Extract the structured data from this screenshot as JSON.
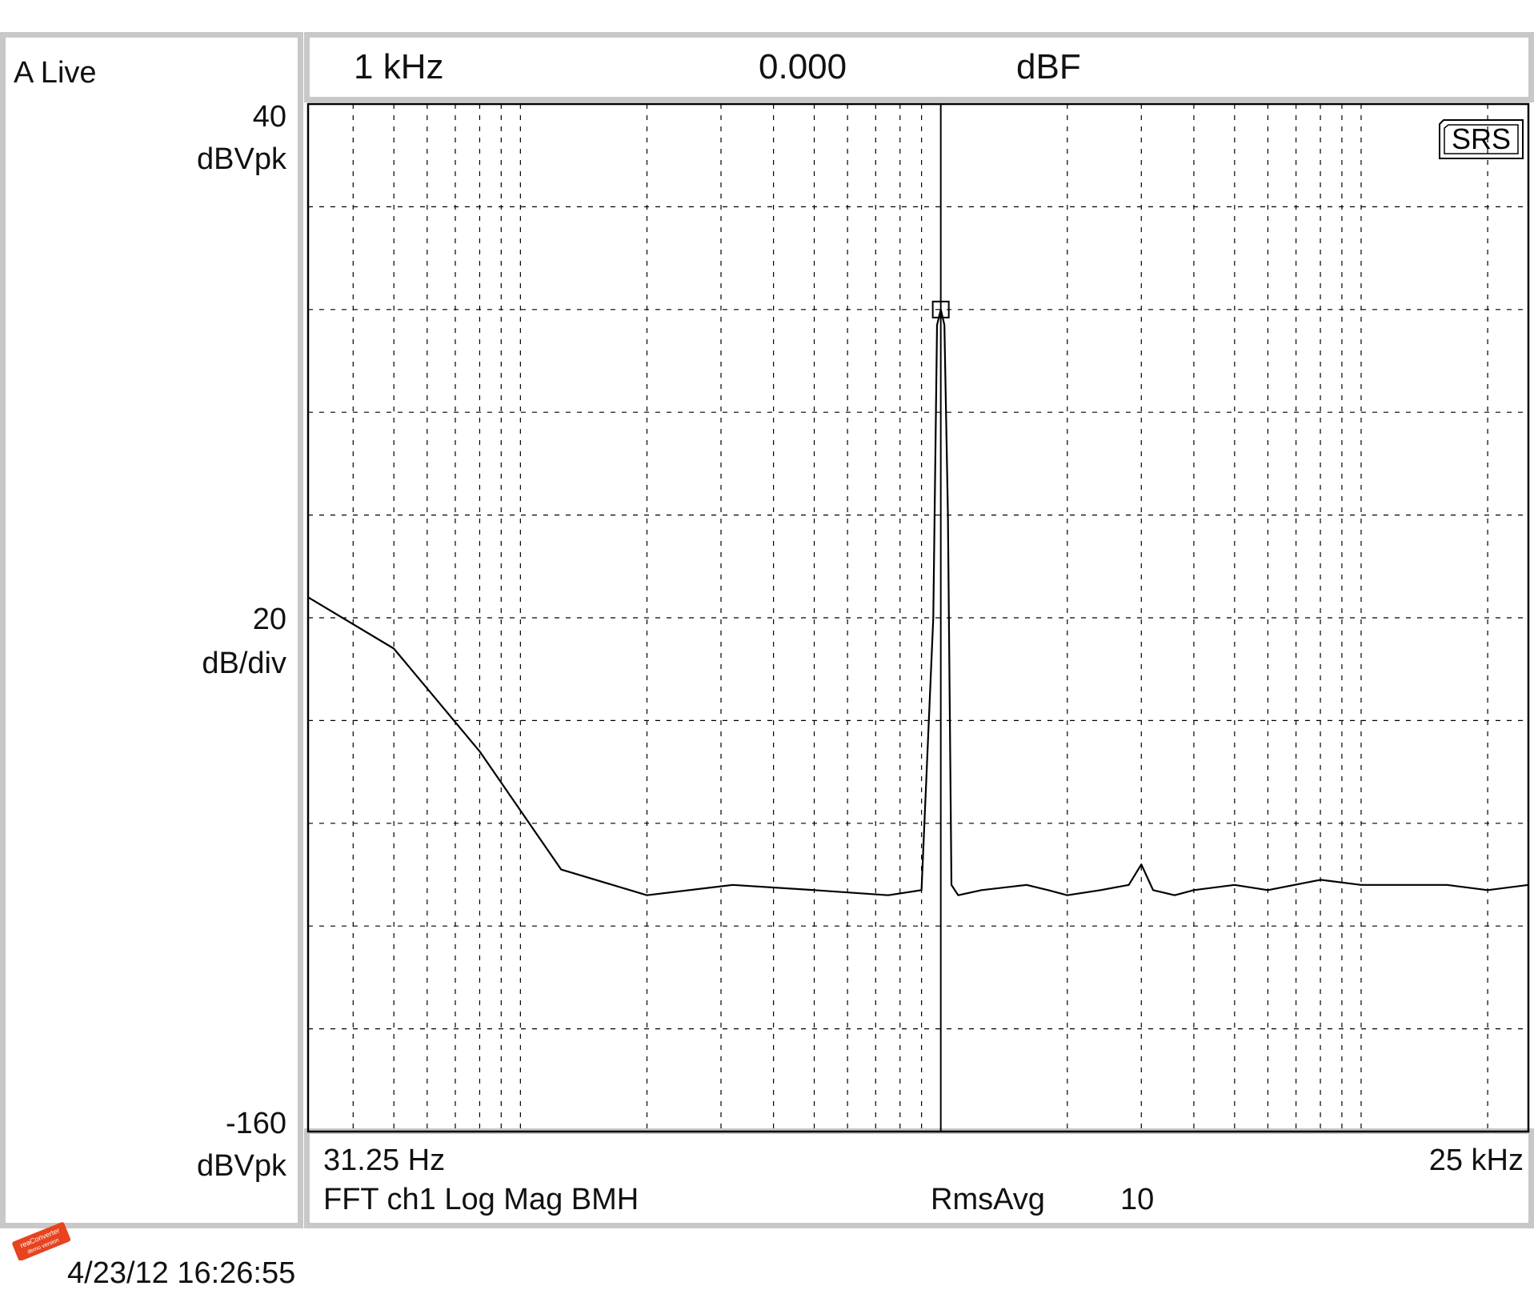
{
  "panel": {
    "name": "A Live"
  },
  "header": {
    "frequency": "1 kHz",
    "value": "0.000",
    "unit": "dBF"
  },
  "left_axis": {
    "top_value": "40",
    "top_unit": "dBVpk",
    "scale_value": "20",
    "scale_unit": "dB/div",
    "bottom_value": "-160",
    "bottom_unit": "dBVpk"
  },
  "footer": {
    "start_freq": "31.25 Hz",
    "end_freq": "25 kHz",
    "measurement": "FFT ch1 Log Mag BMH",
    "avg_label": "RmsAvg",
    "avg_count": "10"
  },
  "badge": "SRS",
  "timestamp": "4/23/12  16:26:55",
  "colors": {
    "trace": "#000000",
    "grid": "#000000",
    "frame": "#c8c8c8"
  },
  "chart_data": {
    "type": "line",
    "x_scale": "log",
    "xlim": [
      31.25,
      25000
    ],
    "ylim": [
      -160,
      40
    ],
    "grid": true,
    "marker": {
      "x": 1000,
      "y": 0.0
    },
    "series": [
      {
        "x": [
          31.25,
          50,
          80,
          125,
          200,
          320,
          500,
          750,
          900,
          960,
          980,
          1000,
          1020,
          1040,
          1060,
          1100,
          1250,
          1600,
          1800,
          2000,
          2400,
          2800,
          3000,
          3200,
          3600,
          4000,
          5000,
          6000,
          8000,
          10000,
          12000,
          16000,
          20000,
          25000
        ],
        "y": [
          -56,
          -66,
          -86,
          -109,
          -114,
          -112,
          -113,
          -114,
          -113,
          -60,
          -3,
          0,
          -3,
          -40,
          -112,
          -114,
          -113,
          -112,
          -113,
          -114,
          -113,
          -112,
          -108,
          -113,
          -114,
          -113,
          -112,
          -113,
          -111,
          -112,
          -112,
          -112,
          -113,
          -112
        ]
      }
    ]
  }
}
